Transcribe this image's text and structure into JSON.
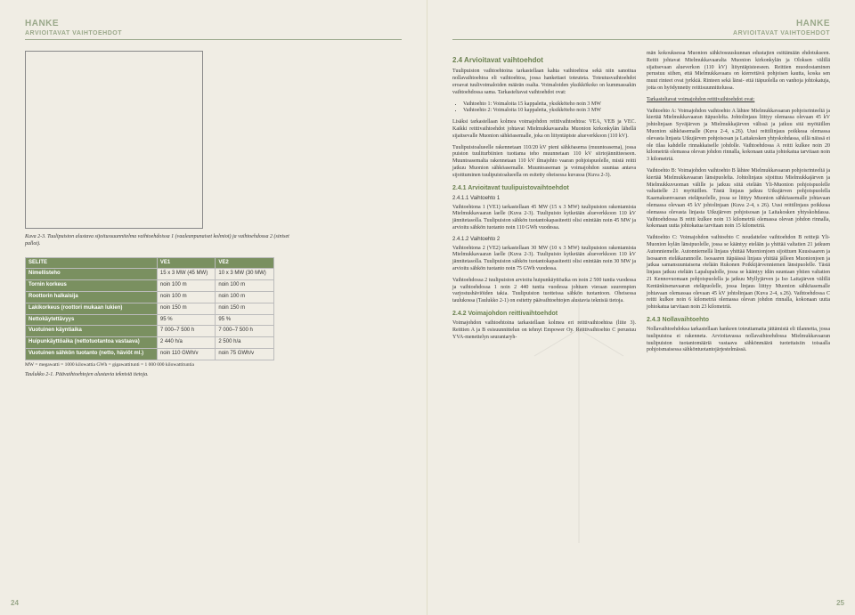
{
  "header": {
    "title": "HANKE",
    "subtitle": "ARVIOITAVAT VAIHTOEHDOT"
  },
  "left": {
    "chart_caption": "Kuva 2-3. Tuulipuiston alustava sijoitussuunnitelma vaihtoehdoissa 1 (vaaleanpunaiset kolmiot) ja vaihtoehdossa 2 (siniset pallot).",
    "table": {
      "headers": [
        "SELITE",
        "VE1",
        "VE2"
      ],
      "rows": [
        [
          "Nimellisteho",
          "15 x 3 MW\n(45 MW)",
          "10 x 3 MW\n(30 MW)"
        ],
        [
          "Tornin korkeus",
          "noin 100 m",
          "noin 100 m"
        ],
        [
          "Roottorin halkaisija",
          "noin 100 m",
          "noin 100 m"
        ],
        [
          "Lakikorkeus (roottori mukaan lukien)",
          "noin 150 m",
          "noin 150 m"
        ],
        [
          "Nettokäytettävyys",
          "95 %",
          "95 %"
        ],
        [
          "Vuotuinen käyntiaika",
          "7 000–7 500 h",
          "7 000–7 500 h"
        ],
        [
          "Huipunkäyttöaika (nettotuotantoa vastaava)",
          "2 440 h/a",
          "2 500 h/a"
        ],
        [
          "Vuotuinen sähkön tuotanto (netto, häviöt ml.)",
          "noin 110 GWh/v",
          "noin 75 GWh/v"
        ]
      ],
      "footnote": "MW = megawatti = 1000 kilowattia     GWh = gigawattitunti = 1 000 000 kilowattituntia",
      "caption": "Taulukko 2-1. Päävaihtoehtojen alustavia teknisiä tietoja."
    },
    "page_num": "24"
  },
  "right": {
    "section_24": "2.4 Arvioitavat vaihtoehdot",
    "p24_1": "Tuulipuiston vaihtoehtoina tarkastellaan kahta vaihtoehtoa sekä niin sanottua nollavaihtoehtoa eli vaihtoehtoa, jossa hankettaei toteuteta. Toteutusvaihtoehdot eroavat tuulivoimaloiden määrän osalta. Voimaloiden yksikkökoko on kummassakin vaihtoehdossa sama. Tarkasteltavat vaihtoehdot ovat:",
    "bullets": [
      "Vaihtoehto 1: Voimaloita 15 kappaletta, yksikköteho noin 3 MW",
      "Vaihtoehto 2: Voimaloita 10 kappaletta, yksikköteho noin 3 MW"
    ],
    "p24_2": "Lisäksi tarkastellaan kolmea voimajohdon reittivaihtoehtoa: VEA, VEB ja VEC. Kaikki reittivaihtoehdot johtavat Mielmukkavaaralta Muonion kirkonkylän lähellä sijaitsevalle Muonion sähköasemalle, joka on liityntäpiste alueverkkoon (110 kV).",
    "p24_3": "Tuulipuistoalueelle rakennetaan 110/20 kV pieni sähköasema (muuntoasema), jossa puiston tuuliturbiinien tuottama teho muunnetaan 110 kV siirtojännitteeseen. Muuntoasemalta rakennetaan 110 kV ilmajohto vaaran pohjoispuolelle, mistä reitti jatkuu Muonion sähköasemalle. Muuntoaseman ja voimajohdon suuntaa antava sijoittuminen tuulipuistoalueella on esitetty oheisessa kuvassa (Kuva 2-3).",
    "section_241": "2.4.1 Arvioitavat tuulipuistovaihtoehdot",
    "sub_2411": "2.4.1.1 Vaihtoehto 1",
    "p2411": "Vaihtoehtona 1 (VE1) tarkastellaan 45 MW (15 x 3 MW) tuulipuiston rakentamista Mielmukkavaaran laelle (Kuva 2-3). Tuulipuisto kytketään alueverkkoon 110 kV jännitetasolla. Tuulipuiston sähkön tuotantokapasiteetti olisi enintään noin 45 MW ja arvioitu sähkön tuotanto noin 110 GWh vuodessa.",
    "sub_2412": "2.4.1.2 Vaihtoehto 2",
    "p2412_1": "Vaihtoehtona 2 (VE2) tarkastellaan 30 MW (10 x 3 MW) tuulipuiston rakentamista Mielmukkavaaran laelle (Kuva 2-3). Tuulipuisto kytketään alueverkkoon 110 kV jännitetasolla. Tuulipuiston sähkön tuotantokapasiteetti olisi enintään noin 30 MW ja arvioitu sähkön tuotanto noin 75 GWh vuodessa.",
    "p2412_2": "Vaihtoehdossa 2 tuulipuiston arvioitu huipunkäyttöaika on noin 2 500 tuntia vuodessa ja vaihtoehdossa 1 noin 2 440 tuntia vuodessa johtuen vieraan suurempien varjostushäviöiden takia. Tuulipuiston tuotteissa sähkön tuotantoon. Oheisessa taulukossa (Taulukko 2-1) on esitetty päävaihtoehtojen alustavia teknisiä tietoja.",
    "section_242": "2.4.2 Voimajohdon reittivaihtoehdot",
    "p242": "Voimajohdon vaihtoehtoina tarkastellaan kolmea eri reittivaihtoehtoa (liite 3). Reittien A ja B esisuunnittelun on tehnyt Empower Oy. Reittivaihtoehto C perustuu YVA-menettelyn seurantaryh-",
    "col2_p1": "män kokouksessa Muonion sähköosuuskunnan edustajien esittämään ehdotukseen. Reitit johtavat Mielmukkavaaralta Muonion kirkonkylän ja Oloksen välillä sijaitsevaan alueverkon (110 kV) liityntäpisteeseen. Reittien muodostaminen perustuu siihen, että Mielmukkavaara on kierrettävä pohjoisen kautta, koska sen muut rinteet ovat jyrkkiä. Rinteen sekä länsi- että itäpuolella on vanhoja johtokatuja, jotta on hyödynnetty reittisuunnittelussa.",
    "col2_sub": "Tarkasteltavat voimajohdon reittivaihtoehdot ovat:",
    "col2_vea": "Vaihtoehto A: Voimajohdon vaihtoehto A lähtee Mielmukkavaaran pohjoisrinteeltä ja kiertää Mielmukkavaaran itäpuolelta. Johtolinjaus liittyy olemassa olevaan 45 kV johtolinjaan Syväjärven ja Mielmukkajärven välissä ja jatkuu sitä myötäillen Muonion sähköasemalle (Kuva 2-4, s.26). Uusi reittilinjaus poikkeaa olemassa olevasta linjasta Utkujärven pohjoisosan ja Laitakosken yhtyskohdassa, sillä näissä ei ole tilaa kahdelle rinnakkaiselle johdolle. Vaihtoehdossa A reitti kulkee noin 20 kilometriä olemassa olevan johdon rinnalla, kokonaan uutta johtokatua tarvitaan noin 3 kilometriä.",
    "col2_veb": "Vaihtoehto B: Voimajohdon vaihtoehto B lähtee Mielmukkavaaran pohjoisrinteeltä ja kiertää Mielmukkavaaran länsipuolelta. Johtolinjaus sijoittuu Mielmukkajärven ja Mielmukkuvuoman välille ja jatkuu siitä etelään Yli-Muonion pohjoispuolelle valtatielle 21 myötäillen. Tästä linjaus jatkuu Utkujärven pohjoispuolella Kaarnaksenvaaran eteläpuolelle, jossa se liittyy Muonion sähköasemalle johtavaan olemassa olevaan 45 kV johtolinjaan (Kuva 2-4, s 26). Uusi reittilinjaus poikkeaa olemassa olevasta linjasta Utkujärven pohjoisosan ja Laitakosken yhtyskohdassa. Vaihtoehdossa B reitti kulkee noin 13 kilometriä olemassa olevan johdon rinnalla, kokonaan uutta johtokatua tarvitaan noin 15 kilometriä.",
    "col2_vec": "Vaihtoehto C: Voimajohdon vaihtoehto C noudattelee vaihtoehdon B reittejä Yli-Muonion kylän länsipuolelle, jossa se kääntyy etelään ja yhittää valtatien 21 jatkuen Autonniemelle. Autonniemellä linjaus yhittää Muonionjoen sijoittuen Kuusisaaren ja Isosaaren eteläkarannolle. Isosaaren itäpäässä linjaus yhittää jälleen Muonionjoen ja jatkaa samansuuntaisena etelään Rukonen Poikkijärvenniemen länsipuolelle. Tästä linjaus jatkuu etelään Lapalupalolle, jossa se kääntyy idän suuntaan yhtien valtatien 21 Kennovuomaan pohjoispuolella ja jatkuu Myllyjärven ja Iso Laitajärven välillä Kentänkisenavaaran eteläpuolelle, jossa linjaus liittyy Muonion sähköasemalle johtavaan olemassaa olevaan 45 kV johtolinjaan (Kuva 2-4, s.26). Vaihtoehdossa C reitti kulkee noin 6 kilometriä olemassa olevan johdon rinnalla, kokonaan uutta johtokatua tarvitaan noin 23 kilometriä.",
    "section_243": "2.4.3 Nollavaihtoehto",
    "p243": "Nollavaihtoehdoksa tarkastellaan hankeen toteuttamatta jättämistä eli tilannetta, jossa tuulipuistoa ei rakenneta. Arvioitavassa nollavaihtoehdossa Mielmukkavaaran tuulipuiston tuotantomääriä vastaava sähkönmäärä tuotettaisiin toisaalla pohjoismaisessa sähköntuotantojärjestelmässä.",
    "page_num": "25"
  }
}
